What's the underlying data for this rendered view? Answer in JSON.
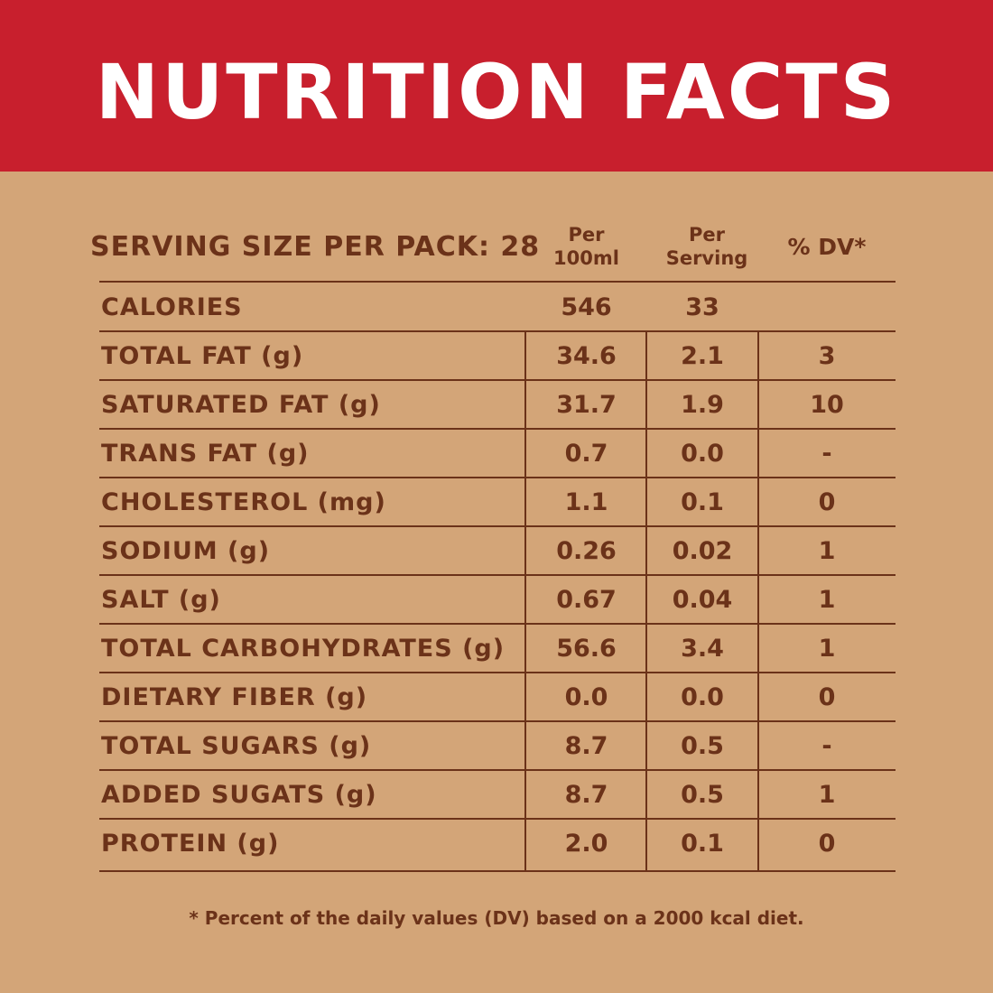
{
  "header": {
    "title": "NUTRITION FACTS",
    "background_color": "#c81f2d",
    "text_color": "#ffffff"
  },
  "table": {
    "serving_label": "SERVING SIZE PER PACK: 28",
    "columns": {
      "per_100ml": "Per\n100ml",
      "per_serving": "Per\nServing",
      "dv": "% DV*"
    },
    "rows": [
      {
        "name": "CALORIES",
        "per_100ml": "546",
        "per_serving": "33",
        "dv": ""
      },
      {
        "name": "TOTAL FAT (g)",
        "per_100ml": "34.6",
        "per_serving": "2.1",
        "dv": "3"
      },
      {
        "name": "SATURATED FAT (g)",
        "per_100ml": "31.7",
        "per_serving": "1.9",
        "dv": "10"
      },
      {
        "name": "TRANS FAT (g)",
        "per_100ml": "0.7",
        "per_serving": "0.0",
        "dv": "-"
      },
      {
        "name": "CHOLESTEROL (mg)",
        "per_100ml": "1.1",
        "per_serving": "0.1",
        "dv": "0"
      },
      {
        "name": "SODIUM (g)",
        "per_100ml": "0.26",
        "per_serving": "0.02",
        "dv": "1"
      },
      {
        "name": "SALT (g)",
        "per_100ml": "0.67",
        "per_serving": "0.04",
        "dv": "1"
      },
      {
        "name": "TOTAL CARBOHYDRATES (g)",
        "per_100ml": "56.6",
        "per_serving": "3.4",
        "dv": "1"
      },
      {
        "name": "DIETARY FIBER (g)",
        "per_100ml": "0.0",
        "per_serving": "0.0",
        "dv": "0"
      },
      {
        "name": "TOTAL SUGARS (g)",
        "per_100ml": "8.7",
        "per_serving": "0.5",
        "dv": "-"
      },
      {
        "name": "ADDED SUGATS (g)",
        "per_100ml": "8.7",
        "per_serving": "0.5",
        "dv": "1"
      },
      {
        "name": "PROTEIN (g)",
        "per_100ml": "2.0",
        "per_serving": "0.1",
        "dv": "0"
      }
    ],
    "text_color": "#6b3219",
    "background_color": "#d3a578"
  },
  "footnote": "* Percent of the daily values (DV) based on a 2000 kcal diet."
}
